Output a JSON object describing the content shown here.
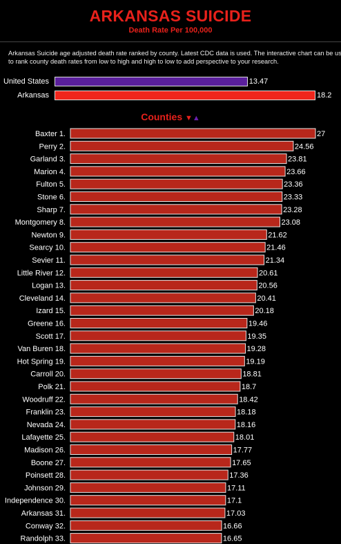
{
  "header": {
    "title": "ARKANSAS SUICIDE",
    "subtitle": "Death Rate Per 100,000"
  },
  "description": {
    "line1": "Arkansas Suicide age adjusted death rate ranked by county. Latest CDC data is used. The interactive chart can be us",
    "line2": "to rank county death rates from low to high and high to low to add perspective to your research."
  },
  "reference": [
    {
      "label": "United States",
      "value": 13.47,
      "display": "13.47",
      "color": "#5a1f9c"
    },
    {
      "label": "Arkansas",
      "value": 18.2,
      "display": "18.2",
      "color": "#f0261c"
    }
  ],
  "counties_section": {
    "label": "Counties",
    "sort_desc_icon": "▼",
    "sort_asc_icon": "▲"
  },
  "colors": {
    "bar": "#b8271b",
    "bar_border": "#e6e6e6",
    "title": "#e8211b"
  },
  "chart_data": {
    "type": "bar",
    "orientation": "horizontal",
    "categories": [
      "Baxter 1.",
      "Perry 2.",
      "Garland 3.",
      "Marion 4.",
      "Fulton 5.",
      "Stone 6.",
      "Sharp 7.",
      "Montgomery 8.",
      "Newton 9.",
      "Searcy 10.",
      "Sevier 11.",
      "Little River 12.",
      "Logan 13.",
      "Cleveland 14.",
      "Izard 15.",
      "Greene 16.",
      "Scott 17.",
      "Van Buren 18.",
      "Hot Spring 19.",
      "Carroll 20.",
      "Polk 21.",
      "Woodruff 22.",
      "Franklin 23.",
      "Nevada 24.",
      "Lafayette 25.",
      "Madison 26.",
      "Boone 27.",
      "Poinsett 28.",
      "Johnson 29.",
      "Independence 30.",
      "Arkansas 31.",
      "Conway 32.",
      "Randolph 33."
    ],
    "values": [
      27,
      24.56,
      23.81,
      23.66,
      23.36,
      23.33,
      23.28,
      23.08,
      21.62,
      21.46,
      21.34,
      20.61,
      20.56,
      20.41,
      20.18,
      19.46,
      19.35,
      19.28,
      19.19,
      18.81,
      18.7,
      18.42,
      18.18,
      18.16,
      18.01,
      17.77,
      17.65,
      17.36,
      17.11,
      17.1,
      17.03,
      16.66,
      16.65
    ],
    "value_labels": [
      "27",
      "24.56",
      "23.81",
      "23.66",
      "23.36",
      "23.33",
      "23.28",
      "23.08",
      "21.62",
      "21.46",
      "21.34",
      "20.61",
      "20.56",
      "20.41",
      "20.18",
      "19.46",
      "19.35",
      "19.28",
      "19.19",
      "18.81",
      "18.7",
      "18.42",
      "18.18",
      "18.16",
      "18.01",
      "17.77",
      "17.65",
      "17.36",
      "17.11",
      "17.1",
      "17.03",
      "16.66",
      "16.65"
    ],
    "xlim": [
      0,
      27
    ],
    "grid": false,
    "legend": "none"
  }
}
